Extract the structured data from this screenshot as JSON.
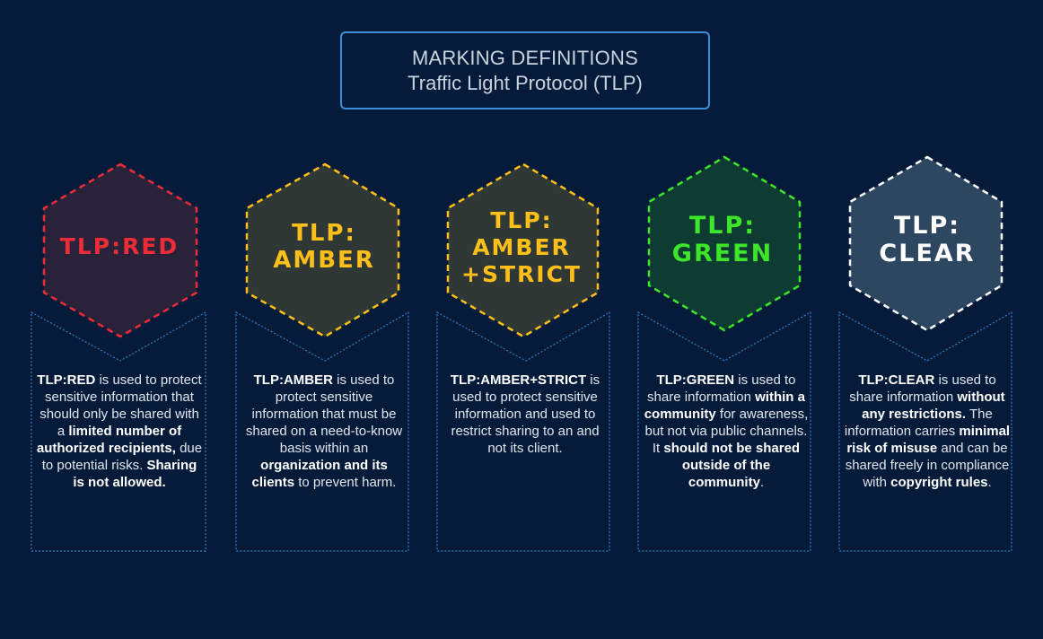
{
  "header": {
    "line1": "MARKING DEFINITIONS",
    "line2": "Traffic Light Protocol (TLP)"
  },
  "colors": {
    "background": "#061b3a",
    "header_border": "#3b8fd6",
    "red": "#ee2c38",
    "amber": "#ffbf1a",
    "green": "#3ee629",
    "clear": "#ffffff",
    "desc_border": "#2f7fc5"
  },
  "cards": [
    {
      "id": "red",
      "label_lines": [
        "TLP:RED"
      ],
      "desc": [
        {
          "t": "TLP:RED",
          "b": true
        },
        {
          "t": " is used to protect sensitive information that should only be shared with a ",
          "b": false
        },
        {
          "t": "limited number of authorized recipients,",
          "b": true
        },
        {
          "t": " due to potential risks. ",
          "b": false
        },
        {
          "t": "Sharing is not allowed.",
          "b": true
        }
      ]
    },
    {
      "id": "amber",
      "label_lines": [
        "TLP:",
        "AMBER"
      ],
      "desc": [
        {
          "t": "TLP:AMBER",
          "b": true
        },
        {
          "t": " is used to protect sensitive information that must be shared on a need-to-know basis within an ",
          "b": false
        },
        {
          "t": "organization and its clients",
          "b": true
        },
        {
          "t": " to prevent harm.",
          "b": false
        }
      ]
    },
    {
      "id": "amber-strict",
      "label_lines": [
        "TLP:",
        "AMBER",
        "+STRICT"
      ],
      "desc": [
        {
          "t": "TLP:AMBER+STRICT",
          "b": true
        },
        {
          "t": " is used to protect sensitive information and used to restrict sharing to an   and not its client.",
          "b": false
        }
      ]
    },
    {
      "id": "green",
      "label_lines": [
        "TLP:",
        "GREEN"
      ],
      "desc": [
        {
          "t": "TLP:GREEN",
          "b": true
        },
        {
          "t": " is used to share information ",
          "b": false
        },
        {
          "t": "within a community",
          "b": true
        },
        {
          "t": " for awareness, but not via public channels. It ",
          "b": false
        },
        {
          "t": "should not be shared outside of the community",
          "b": true
        },
        {
          "t": ".",
          "b": false
        }
      ]
    },
    {
      "id": "clear",
      "label_lines": [
        "TLP:",
        "CLEAR"
      ],
      "desc": [
        {
          "t": "TLP:CLEAR",
          "b": true
        },
        {
          "t": " is used to share information ",
          "b": false
        },
        {
          "t": "without any restrictions.",
          "b": true
        },
        {
          "t": " The information carries ",
          "b": false
        },
        {
          "t": "minimal risk of misuse",
          "b": true
        },
        {
          "t": " and can be shared freely in compliance with ",
          "b": false
        },
        {
          "t": "copyright rules",
          "b": true
        },
        {
          "t": ".",
          "b": false
        }
      ]
    }
  ]
}
